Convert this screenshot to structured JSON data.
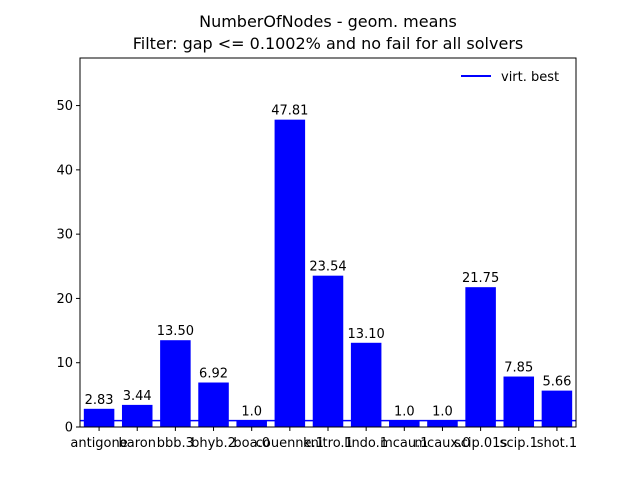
{
  "chart_data": {
    "type": "bar",
    "title": "NumberOfNodes - geom. means",
    "subtitle": "Filter: gap <= 0.1002% and no fail for all solvers",
    "xlabel": "",
    "ylabel": "",
    "categories": [
      "antigone",
      "baron",
      "bbb.3",
      "bhyb.2",
      "boa.0",
      "couenne.1",
      "knitro.1",
      "lindo.1",
      "mcau.1",
      "mcaux.0",
      "scip.01s",
      "scip.1",
      "shot.1"
    ],
    "values": [
      2.83,
      3.44,
      13.5,
      6.92,
      1.0,
      47.81,
      23.54,
      13.1,
      1.0,
      1.0,
      21.75,
      7.85,
      5.66
    ],
    "value_labels": [
      "2.83",
      "3.44",
      "13.50",
      "6.92",
      "1.0",
      "47.81",
      "23.54",
      "13.10",
      "1.0",
      "1.0",
      "21.75",
      "7.85",
      "5.66"
    ],
    "ylim": [
      0,
      57.4
    ],
    "yticks": [
      0,
      10,
      20,
      30,
      40,
      50
    ],
    "reference_line": {
      "name": "virt. best",
      "value": 1.0
    },
    "legend": {
      "placement": "top-right",
      "entries": [
        "virt. best"
      ]
    },
    "grid": false,
    "colors": {
      "bar": "#0000ff",
      "line": "#0000ff"
    }
  }
}
